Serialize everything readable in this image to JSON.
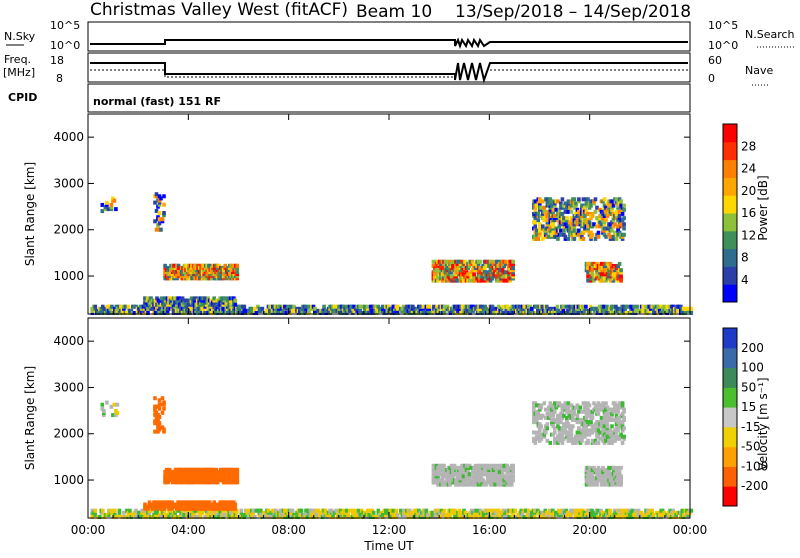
{
  "header": {
    "title": "Christmas Valley West (fitACF)",
    "beam": "Beam 10",
    "date_range": "13/Sep/2018 – 14/Sep/2018"
  },
  "top_panels": {
    "nsky_label": "N.Sky",
    "nsky_top": "10^5",
    "nsky_bottom": "10^0",
    "nsearch_label": "N.Search",
    "nsearch_top": "10^5",
    "nsearch_bottom": "10^0",
    "freq_label_line1": "Freq.",
    "freq_label_line2": "[MHz]",
    "freq_top": "18",
    "freq_bottom": "8",
    "nave_label": "Nave",
    "nave_top": "60",
    "nave_bottom": "0",
    "cpid_label": "CPID",
    "cpid_value": "normal (fast) 151 RF"
  },
  "chart_data": [
    {
      "type": "heatmap",
      "title": "Power",
      "ylabel": "Slant Range [km]",
      "xlabel": "",
      "x_ticks": [
        "00:00",
        "04:00",
        "08:00",
        "12:00",
        "16:00",
        "20:00",
        "00:00"
      ],
      "y_ticks": [
        "1000",
        "2000",
        "3000",
        "4000"
      ],
      "ylim": [
        180,
        4500
      ],
      "colorbar_label": "Power [dB]",
      "colorbar_ticks": [
        "4",
        "8",
        "12",
        "16",
        "20",
        "24",
        "28"
      ],
      "colorbar_colors": [
        "#0000ff",
        "#2b3fa8",
        "#2f6d8f",
        "#3f8f5a",
        "#8ec13a",
        "#ffd700",
        "#ffa500",
        "#ff7f00",
        "#ff3000",
        "#ff0000"
      ]
    },
    {
      "type": "heatmap",
      "title": "Velocity",
      "ylabel": "Slant Range [km]",
      "xlabel": "Time UT",
      "x_ticks": [
        "00:00",
        "04:00",
        "08:00",
        "12:00",
        "16:00",
        "20:00",
        "00:00"
      ],
      "y_ticks": [
        "1000",
        "2000",
        "3000",
        "4000"
      ],
      "ylim": [
        180,
        4500
      ],
      "colorbar_label": "Velocity [m s⁻¹]",
      "colorbar_ticks": [
        "200",
        "100",
        "50",
        "15",
        "-15",
        "-50",
        "-100",
        "-200"
      ],
      "colorbar_colors": [
        "#1e3cc8",
        "#3a6aaa",
        "#3c8a5a",
        "#4cbf30",
        "#c8c8c8",
        "#f0d000",
        "#ffa000",
        "#ff6000",
        "#ff0000"
      ]
    }
  ],
  "colors": {
    "velocity_positive": "#3cb832",
    "velocity_negative": "#ff6a00",
    "ground_scatter": "#b4b4b4"
  }
}
